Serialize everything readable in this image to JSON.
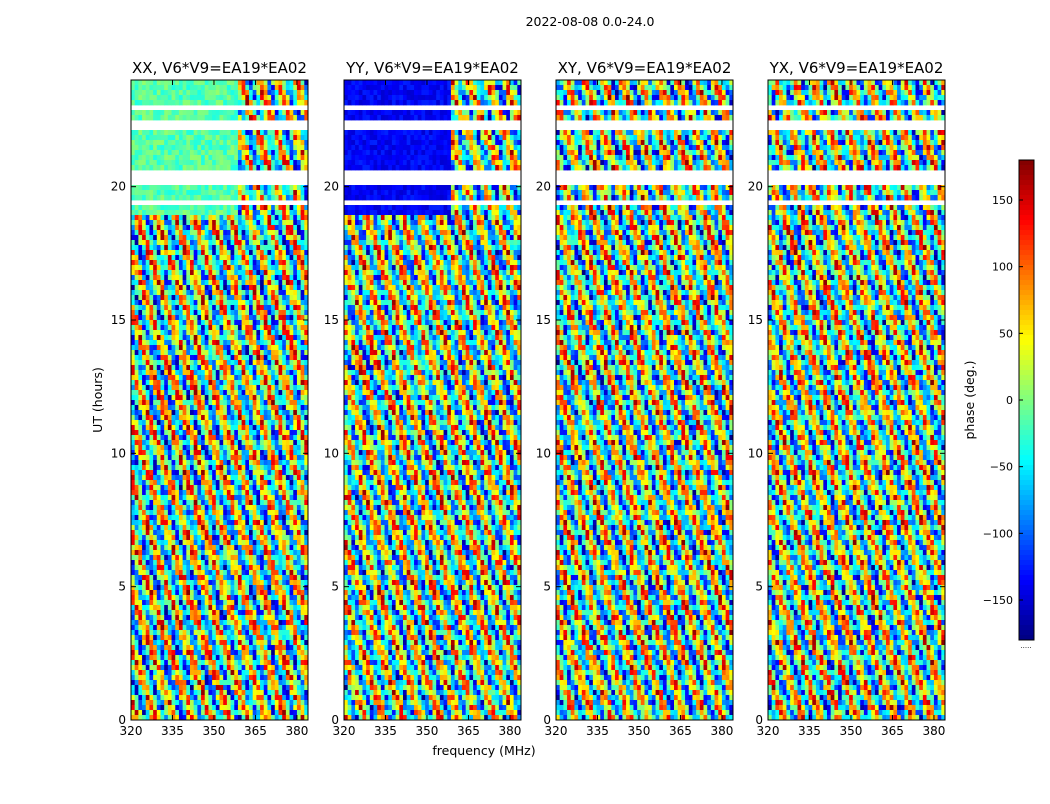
{
  "figure": {
    "suptitle": "2022-08-08 0.0-24.0",
    "ylabel": "UT (hours)",
    "xlabel": "frequency (MHz)",
    "colorbar_label": "phase (deg.)",
    "colorbar_footer": ".....",
    "colormap": "jet"
  },
  "chart_data": {
    "type": "heatmap",
    "x_ticks": [
      "320",
      "335",
      "350",
      "365",
      "380"
    ],
    "x_tick_values": [
      320,
      335,
      350,
      365,
      380
    ],
    "y_ticks": [
      "0",
      "5",
      "10",
      "15",
      "20"
    ],
    "y_tick_values": [
      0,
      5,
      10,
      15,
      20
    ],
    "xlim": [
      320,
      384
    ],
    "ylim": [
      0,
      24
    ],
    "colorbar": {
      "ticks": [
        "150",
        "100",
        "50",
        "0",
        "−50",
        "−100",
        "−150"
      ],
      "tick_values": [
        150,
        100,
        50,
        0,
        -50,
        -100,
        -150
      ],
      "range": [
        -180,
        180
      ]
    },
    "panels": [
      {
        "title": "XX, V6*V9=EA19*EA02",
        "pol": "XX"
      },
      {
        "title": "YY, V6*V9=EA19*EA02",
        "pol": "YY"
      },
      {
        "title": "XY, V6*V9=EA19*EA02",
        "pol": "XY"
      },
      {
        "title": "YX, V6*V9=EA19*EA02",
        "pol": "YX"
      }
    ],
    "flagged_ut_ranges": [
      [
        19.3,
        19.5
      ],
      [
        20.0,
        20.7
      ],
      [
        22.2,
        22.5
      ],
      [
        22.8,
        23.0
      ]
    ]
  }
}
